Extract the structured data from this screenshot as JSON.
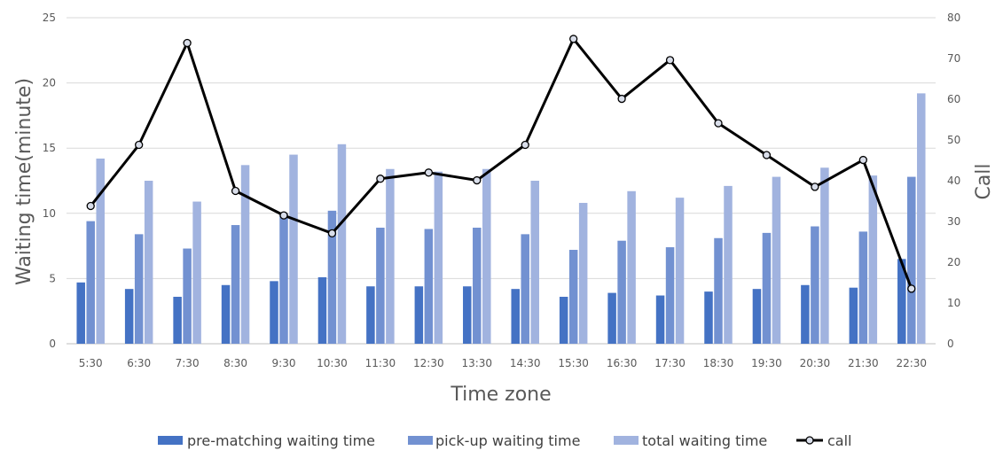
{
  "chart_data": {
    "type": "bar",
    "categories": [
      "5:30",
      "6:30",
      "7:30",
      "8:30",
      "9:30",
      "10:30",
      "11:30",
      "12:30",
      "13:30",
      "14:30",
      "15:30",
      "16:30",
      "17:30",
      "18:30",
      "19:30",
      "20:30",
      "21:30",
      "22:30"
    ],
    "series": [
      {
        "name": "pre-matching waiting time",
        "type": "bar",
        "axis": "left",
        "color": "#4472C4",
        "values": [
          4.7,
          4.2,
          3.6,
          4.5,
          4.8,
          5.1,
          4.4,
          4.4,
          4.4,
          4.2,
          3.6,
          3.9,
          3.7,
          4.0,
          4.2,
          4.5,
          4.3,
          6.5
        ]
      },
      {
        "name": "pick-up waiting time",
        "type": "bar",
        "axis": "left",
        "color": "#7291D1",
        "values": [
          9.4,
          8.4,
          7.3,
          9.1,
          10.0,
          10.2,
          8.9,
          8.8,
          8.9,
          8.4,
          7.2,
          7.9,
          7.4,
          8.1,
          8.5,
          9.0,
          8.6,
          12.8
        ]
      },
      {
        "name": "total waiting time",
        "type": "bar",
        "axis": "left",
        "color": "#A1B3DF",
        "values": [
          14.2,
          12.5,
          10.9,
          13.7,
          14.5,
          15.3,
          13.4,
          13.2,
          13.4,
          12.5,
          10.8,
          11.7,
          11.2,
          12.1,
          12.8,
          13.5,
          12.9,
          19.2
        ]
      },
      {
        "name": "call",
        "type": "line",
        "axis": "right",
        "color": "#000000",
        "values": [
          33.8,
          48.8,
          73.8,
          37.5,
          31.5,
          27.1,
          40.5,
          42.0,
          40.1,
          48.8,
          74.8,
          60.1,
          69.6,
          54.1,
          46.3,
          38.5,
          45.1,
          13.5
        ]
      }
    ],
    "xlabel": "Time zone",
    "ylabel": "Waiting time(minute)",
    "y2label": "Call",
    "ylim": [
      0,
      25
    ],
    "y2lim": [
      0,
      80
    ],
    "yticks": [
      0,
      5,
      10,
      15,
      20,
      25
    ],
    "y2ticks": [
      0,
      10,
      20,
      30,
      40,
      50,
      60,
      70,
      80
    ],
    "grid": true,
    "legend": "bottom"
  }
}
